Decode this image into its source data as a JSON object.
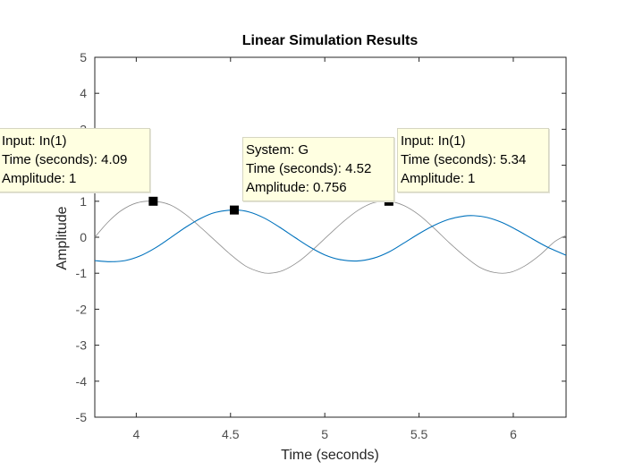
{
  "chart_data": {
    "type": "line",
    "title": "Linear Simulation Results",
    "xlabel": "Time (seconds)",
    "ylabel": "Amplitude",
    "xlim": [
      3.78,
      6.28
    ],
    "ylim": [
      -5,
      5
    ],
    "xticks": [
      "4",
      "4.5",
      "5",
      "5.5",
      "6"
    ],
    "xtick_values": [
      4,
      4.5,
      5,
      5.5,
      6
    ],
    "yticks": [
      "-5",
      "-4",
      "-3",
      "-2",
      "-1",
      "0",
      "1",
      "2",
      "3",
      "4",
      "5"
    ],
    "ytick_values": [
      -5,
      -4,
      -3,
      -2,
      -1,
      0,
      1,
      2,
      3,
      4,
      5
    ],
    "grid": false,
    "series": [
      {
        "name": "In(1)",
        "color": "#8c8c8c",
        "x": [
          3.78,
          3.85,
          3.92,
          4.0,
          4.09,
          4.18,
          4.26,
          4.34,
          4.42,
          4.5,
          4.58,
          4.66,
          4.71,
          4.78,
          4.86,
          4.94,
          5.02,
          5.1,
          5.18,
          5.26,
          5.34,
          5.42,
          5.5,
          5.58,
          5.66,
          5.74,
          5.82,
          5.9,
          5.98,
          6.06,
          6.14,
          6.22,
          6.28
        ],
        "y": [
          0.0,
          0.42,
          0.74,
          0.95,
          1.0,
          0.9,
          0.64,
          0.28,
          -0.1,
          -0.48,
          -0.8,
          -0.97,
          -1.0,
          -0.92,
          -0.68,
          -0.33,
          0.06,
          0.44,
          0.76,
          0.96,
          1.0,
          0.88,
          0.62,
          0.25,
          -0.15,
          -0.52,
          -0.83,
          -0.98,
          -0.98,
          -0.8,
          -0.5,
          -0.12,
          0.05
        ]
      },
      {
        "name": "G",
        "color": "#0072bd",
        "x": [
          3.78,
          3.86,
          3.94,
          4.02,
          4.1,
          4.18,
          4.26,
          4.34,
          4.42,
          4.52,
          4.6,
          4.68,
          4.76,
          4.84,
          4.92,
          5.0,
          5.08,
          5.17,
          5.26,
          5.34,
          5.42,
          5.5,
          5.58,
          5.66,
          5.74,
          5.79,
          5.86,
          5.94,
          6.02,
          6.1,
          6.18,
          6.28
        ],
        "y": [
          -0.65,
          -0.68,
          -0.65,
          -0.52,
          -0.3,
          -0.02,
          0.27,
          0.52,
          0.69,
          0.756,
          0.7,
          0.53,
          0.28,
          0.0,
          -0.27,
          -0.49,
          -0.62,
          -0.66,
          -0.58,
          -0.41,
          -0.16,
          0.1,
          0.33,
          0.5,
          0.59,
          0.6,
          0.55,
          0.41,
          0.2,
          -0.04,
          -0.27,
          -0.5
        ]
      }
    ],
    "data_tips": [
      {
        "line1": "Input: In(1)",
        "line2": "Time (seconds): 4.09",
        "line3": "Amplitude: 1",
        "x": 4.09,
        "y": 1
      },
      {
        "line1": "System: G",
        "line2": "Time (seconds): 4.52",
        "line3": "Amplitude: 0.756",
        "x": 4.52,
        "y": 0.756
      },
      {
        "line1": "Input: In(1)",
        "line2": "Time (seconds): 5.34",
        "line3": "Amplitude: 1",
        "x": 5.34,
        "y": 1
      }
    ]
  }
}
